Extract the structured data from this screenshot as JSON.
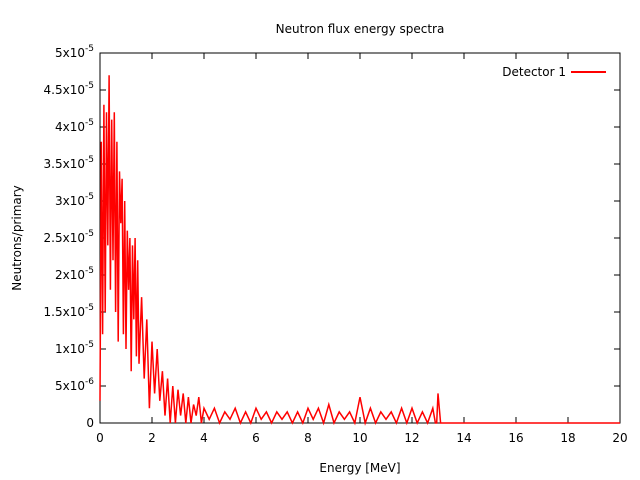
{
  "chart_data": {
    "type": "line",
    "title": "Neutron flux energy spectra",
    "xlabel": "Energy [MeV]",
    "ylabel": "Neutrons/primary",
    "xlim": [
      0,
      20
    ],
    "ylim": [
      0,
      5e-05
    ],
    "x_ticks": [
      "0",
      "2",
      "4",
      "6",
      "8",
      "10",
      "12",
      "14",
      "16",
      "18",
      "20"
    ],
    "y_ticks": [
      {
        "mant": "0",
        "exp": ""
      },
      {
        "mant": "5x10",
        "exp": "-6"
      },
      {
        "mant": "1x10",
        "exp": "-5"
      },
      {
        "mant": "1.5x10",
        "exp": "-5"
      },
      {
        "mant": "2x10",
        "exp": "-5"
      },
      {
        "mant": "2.5x10",
        "exp": "-5"
      },
      {
        "mant": "3x10",
        "exp": "-5"
      },
      {
        "mant": "3.5x10",
        "exp": "-5"
      },
      {
        "mant": "4x10",
        "exp": "-5"
      },
      {
        "mant": "4.5x10",
        "exp": "-5"
      },
      {
        "mant": "5x10",
        "exp": "-5"
      }
    ],
    "grid": false,
    "legend": "top-right",
    "series": [
      {
        "name": "Detector 1",
        "color": "#ff0000",
        "x": [
          0.0,
          0.05,
          0.1,
          0.15,
          0.2,
          0.25,
          0.3,
          0.35,
          0.4,
          0.45,
          0.5,
          0.55,
          0.6,
          0.65,
          0.7,
          0.75,
          0.8,
          0.85,
          0.9,
          0.95,
          1.0,
          1.05,
          1.1,
          1.15,
          1.2,
          1.25,
          1.3,
          1.35,
          1.4,
          1.45,
          1.5,
          1.6,
          1.7,
          1.8,
          1.9,
          2.0,
          2.1,
          2.2,
          2.3,
          2.4,
          2.5,
          2.6,
          2.7,
          2.8,
          2.9,
          3.0,
          3.1,
          3.2,
          3.3,
          3.4,
          3.5,
          3.6,
          3.7,
          3.8,
          3.9,
          4.0,
          4.2,
          4.4,
          4.6,
          4.8,
          5.0,
          5.2,
          5.4,
          5.6,
          5.8,
          6.0,
          6.2,
          6.4,
          6.6,
          6.8,
          7.0,
          7.2,
          7.4,
          7.6,
          7.8,
          8.0,
          8.2,
          8.4,
          8.6,
          8.8,
          9.0,
          9.2,
          9.4,
          9.6,
          9.8,
          10.0,
          10.2,
          10.4,
          10.6,
          10.8,
          11.0,
          11.2,
          11.4,
          11.6,
          11.8,
          12.0,
          12.2,
          12.4,
          12.6,
          12.8,
          12.9,
          12.95,
          13.0,
          13.1,
          14.0,
          15.0,
          16.0,
          17.0,
          18.0,
          19.0,
          20.0
        ],
        "y": [
          3e-06,
          3.8e-05,
          1.2e-05,
          4.3e-05,
          1.5e-05,
          4.2e-05,
          2.4e-05,
          4.7e-05,
          1.8e-05,
          4.1e-05,
          2.2e-05,
          4.2e-05,
          1.5e-05,
          3.8e-05,
          1.1e-05,
          3.4e-05,
          2.7e-05,
          3.3e-05,
          1.2e-05,
          3e-05,
          1e-05,
          2.6e-05,
          1.8e-05,
          2.5e-05,
          7e-06,
          2.4e-05,
          1.4e-05,
          2.5e-05,
          9e-06,
          2.2e-05,
          8e-06,
          1.7e-05,
          6e-06,
          1.4e-05,
          2e-06,
          1.1e-05,
          4e-06,
          1e-05,
          3e-06,
          7e-06,
          1e-06,
          6e-06,
          0.0,
          5e-06,
          0.0,
          4.5e-06,
          1e-06,
          4e-06,
          0.0,
          3.5e-06,
          0.0,
          2.5e-06,
          1e-06,
          3.5e-06,
          0.0,
          2e-06,
          5e-07,
          2e-06,
          0.0,
          1.5e-06,
          5e-07,
          2e-06,
          0.0,
          1.5e-06,
          0.0,
          2e-06,
          5e-07,
          1.5e-06,
          0.0,
          1.5e-06,
          5e-07,
          1.5e-06,
          0.0,
          1.5e-06,
          0.0,
          2e-06,
          5e-07,
          2e-06,
          0.0,
          2.5e-06,
          0.0,
          1.5e-06,
          5e-07,
          1.5e-06,
          0.0,
          3.5e-06,
          0.0,
          2e-06,
          0.0,
          1.5e-06,
          5e-07,
          1.5e-06,
          0.0,
          2e-06,
          0.0,
          2e-06,
          0.0,
          1.5e-06,
          0.0,
          2e-06,
          0.0,
          0.0,
          4e-06,
          0.0,
          0.0,
          0.0,
          0.0,
          0.0,
          0.0,
          0.0,
          0.0
        ]
      }
    ]
  }
}
